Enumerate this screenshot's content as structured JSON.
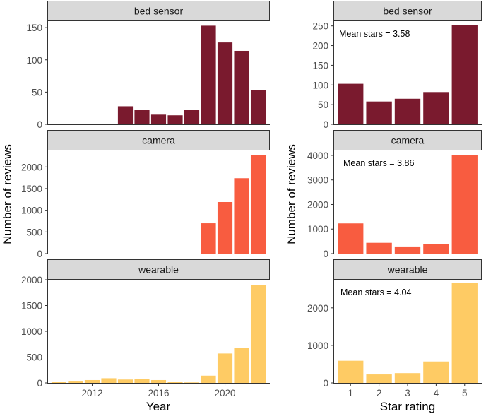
{
  "ylabel": "Number of reviews",
  "chart_data": [
    {
      "type": "bar",
      "panel": "bed sensor",
      "xlabel": "Year",
      "ylabel": "Number of reviews",
      "color": "#7a1a2e",
      "categories": [
        2014,
        2015,
        2016,
        2017,
        2018,
        2019,
        2020,
        2021,
        2022
      ],
      "values": [
        28,
        23,
        15,
        14,
        22,
        153,
        127,
        114,
        53
      ],
      "ylim": [
        0,
        160
      ],
      "yticks": [
        0,
        50,
        100,
        150
      ],
      "xlim": [
        2009.3,
        2022.7
      ],
      "xticks": [
        2012,
        2016,
        2020
      ]
    },
    {
      "type": "bar",
      "panel": "camera",
      "xlabel": "Year",
      "ylabel": "Number of reviews",
      "color": "#f85c40",
      "categories": [
        2019,
        2020,
        2021,
        2022
      ],
      "values": [
        700,
        1190,
        1740,
        2270
      ],
      "ylim": [
        0,
        2380
      ],
      "yticks": [
        0,
        500,
        1000,
        1500,
        2000
      ],
      "xlim": [
        2009.3,
        2022.7
      ],
      "xticks": [
        2012,
        2016,
        2020
      ]
    },
    {
      "type": "bar",
      "panel": "wearable",
      "xlabel": "Year",
      "ylabel": "Number of reviews",
      "color": "#fecb64",
      "categories": [
        2010,
        2011,
        2012,
        2013,
        2014,
        2015,
        2016,
        2017,
        2018,
        2019,
        2020,
        2021,
        2022
      ],
      "values": [
        15,
        40,
        55,
        90,
        65,
        70,
        55,
        25,
        10,
        140,
        570,
        680,
        1900
      ],
      "ylim": [
        0,
        2000
      ],
      "yticks": [
        0,
        500,
        1000,
        1500,
        2000
      ],
      "xlim": [
        2009.3,
        2022.7
      ],
      "xticks": [
        2012,
        2016,
        2020
      ]
    },
    {
      "type": "bar",
      "panel": "bed sensor",
      "xlabel": "Star rating",
      "ylabel": "Number of reviews",
      "color": "#7a1a2e",
      "categories": [
        1,
        2,
        3,
        4,
        5
      ],
      "values": [
        103,
        58,
        65,
        82,
        252
      ],
      "ylim": [
        0,
        262
      ],
      "yticks": [
        0,
        50,
        100,
        150,
        200,
        250
      ],
      "annotation": "Mean stars = 3.58"
    },
    {
      "type": "bar",
      "panel": "camera",
      "xlabel": "Star rating",
      "ylabel": "Number of reviews",
      "color": "#f85c40",
      "categories": [
        1,
        2,
        3,
        4,
        5
      ],
      "values": [
        1230,
        440,
        290,
        400,
        4000
      ],
      "ylim": [
        0,
        4200
      ],
      "yticks": [
        0,
        1000,
        2000,
        3000,
        4000
      ],
      "annotation": "Mean stars = 3.86"
    },
    {
      "type": "bar",
      "panel": "wearable",
      "xlabel": "Star rating",
      "ylabel": "Number of reviews",
      "color": "#fecb64",
      "categories": [
        1,
        2,
        3,
        4,
        5
      ],
      "values": [
        590,
        225,
        260,
        570,
        2660
      ],
      "ylim": [
        0,
        2750
      ],
      "yticks": [
        0,
        1000,
        2000
      ],
      "annotation": "Mean stars = 4.04"
    }
  ]
}
